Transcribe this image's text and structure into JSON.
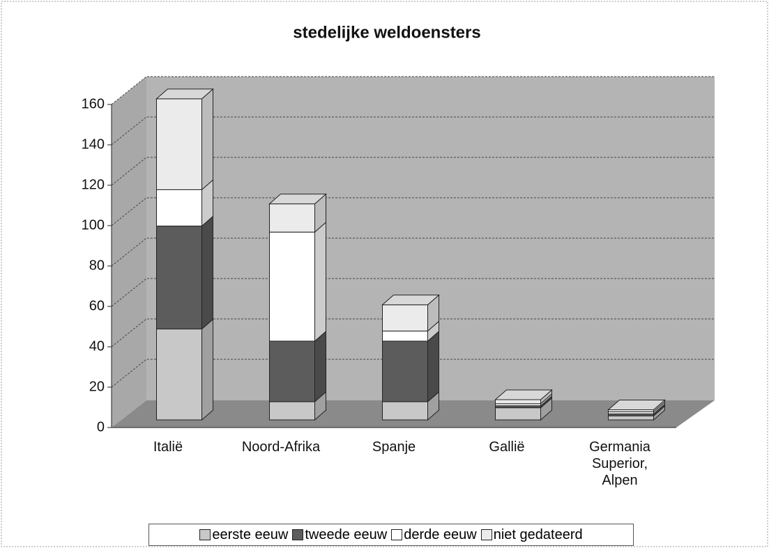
{
  "chart_data": {
    "type": "bar3d_stacked",
    "title": "stedelijke weldoensters",
    "categories": [
      "Italië",
      "Noord-Afrika",
      "Spanje",
      "Gallië",
      "Germania Superior, Alpen"
    ],
    "series": [
      {
        "name": "eerste eeuw",
        "color": "#c8c8c8",
        "values": [
          45,
          9,
          9,
          6,
          2
        ]
      },
      {
        "name": "tweede eeuw",
        "color": "#5c5c5c",
        "values": [
          51,
          30,
          30,
          1,
          1
        ]
      },
      {
        "name": "derde eeuw",
        "color": "#ffffff",
        "values": [
          18,
          54,
          5,
          1,
          1
        ]
      },
      {
        "name": "niet gedateerd",
        "color": "#ebebeb",
        "values": [
          45,
          14,
          13,
          2,
          1
        ]
      }
    ],
    "ylim": [
      0,
      160
    ],
    "yticks": [
      0,
      20,
      40,
      60,
      80,
      100,
      120,
      140,
      160
    ],
    "grid": true,
    "legend": "bottom"
  }
}
